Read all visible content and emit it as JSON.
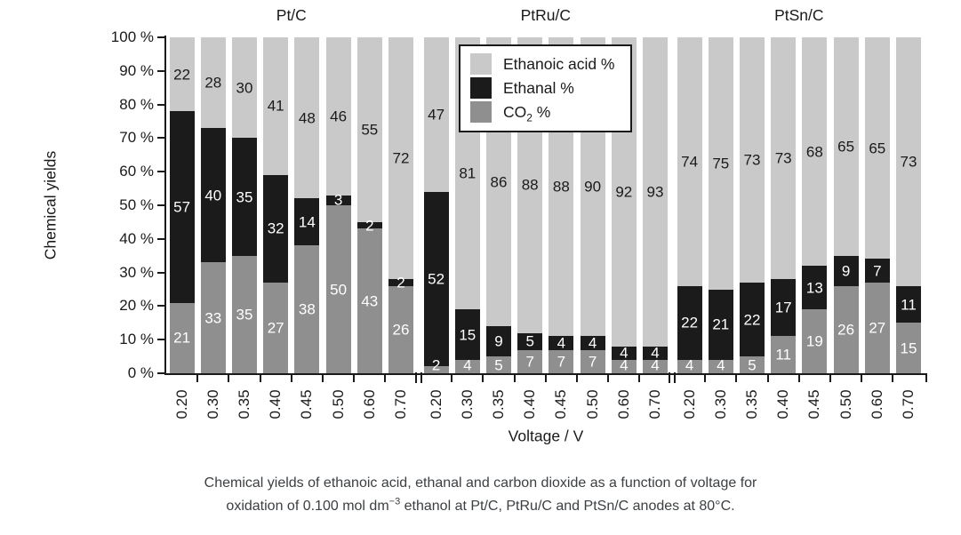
{
  "figure": {
    "y_axis_title": "Chemical yields",
    "x_axis_title": "Voltage / V",
    "y_tick_labels": [
      "0 %",
      "10 %",
      "20 %",
      "30 %",
      "40 %",
      "50 %",
      "60 %",
      "70 %",
      "80 %",
      "90 %",
      "100 %"
    ],
    "caption": {
      "line1": "Chemical yields of ethanoic acid, ethanal and carbon dioxide as a function of voltage for",
      "line2_parts": [
        {
          "t": "oxidation of 0.100 mol dm"
        },
        {
          "t": "−3",
          "sup": true
        },
        {
          "t": " ethanol at Pt/C, PtRu/C and PtSn/C anodes at 80°C."
        }
      ]
    }
  },
  "chart_data": {
    "type": "bar",
    "stacked": true,
    "orientation": "vertical",
    "title": "",
    "ylabel": "Chemical yields",
    "xlabel": "Voltage / V",
    "ylim": [
      0,
      100
    ],
    "grid": false,
    "legend_position": "inside-top-center",
    "categories": [
      "0.20",
      "0.30",
      "0.35",
      "0.40",
      "0.45",
      "0.50",
      "0.60",
      "0.70"
    ],
    "colors": {
      "ethanoic_acid": "#c9c9c9",
      "ethanal": "#1b1b1b",
      "co2": "#8f8f8f",
      "axis": "#1a1a1a"
    },
    "legend": [
      {
        "key": "ethanoic_acid",
        "label": "Ethanoic acid %",
        "color": "#c9c9c9",
        "parts": [
          {
            "t": "Ethanoic acid %"
          }
        ]
      },
      {
        "key": "ethanal",
        "label": "Ethanal %",
        "color": "#1b1b1b",
        "parts": [
          {
            "t": "Ethanal %"
          }
        ]
      },
      {
        "key": "co2",
        "label": "CO2 %",
        "color": "#8f8f8f",
        "parts": [
          {
            "t": "CO"
          },
          {
            "t": "2",
            "sub": true
          },
          {
            "t": " %"
          }
        ]
      }
    ],
    "groups": [
      {
        "name": "Pt/C",
        "series": [
          {
            "key": "co2",
            "name": "CO2 %",
            "values": [
              21,
              33,
              35,
              27,
              38,
              50,
              43,
              26
            ]
          },
          {
            "key": "ethanal",
            "name": "Ethanal %",
            "values": [
              57,
              40,
              35,
              32,
              14,
              3,
              2,
              2
            ]
          },
          {
            "key": "ethanoic_acid",
            "name": "Ethanoic acid %",
            "values": [
              22,
              28,
              30,
              41,
              48,
              46,
              55,
              72
            ]
          }
        ]
      },
      {
        "name": "PtRu/C",
        "series": [
          {
            "key": "co2",
            "name": "CO2 %",
            "values": [
              2,
              4,
              5,
              7,
              7,
              7,
              4,
              4
            ]
          },
          {
            "key": "ethanal",
            "name": "Ethanal %",
            "values": [
              52,
              15,
              9,
              5,
              4,
              4,
              4,
              4
            ]
          },
          {
            "key": "ethanoic_acid",
            "name": "Ethanoic acid %",
            "values": [
              47,
              81,
              86,
              88,
              88,
              90,
              92,
              93
            ]
          }
        ]
      },
      {
        "name": "PtSn/C",
        "series": [
          {
            "key": "co2",
            "name": "CO2 %",
            "values": [
              4,
              4,
              5,
              11,
              19,
              26,
              27,
              15
            ]
          },
          {
            "key": "ethanal",
            "name": "Ethanal %",
            "values": [
              22,
              21,
              22,
              17,
              13,
              9,
              7,
              11
            ]
          },
          {
            "key": "ethanoic_acid",
            "name": "Ethanoic acid %",
            "values": [
              74,
              75,
              73,
              73,
              68,
              65,
              65,
              73
            ]
          }
        ]
      }
    ]
  }
}
